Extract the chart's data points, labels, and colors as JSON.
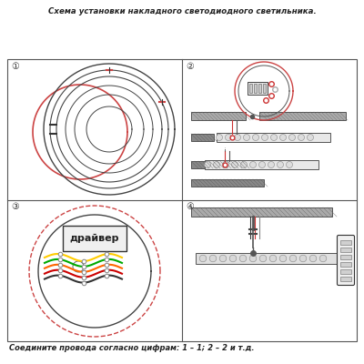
{
  "title": "Схема установки накладного светодиодного светильника.",
  "bottom_text": "Соедините провода согласно цифрам: 1 – 1; 2 – 2 и т.д.",
  "background_color": "#ffffff",
  "border_color": "#555555",
  "quadrant_labels": [
    "①",
    "②",
    "③",
    "④"
  ],
  "driver_text": "драйвер",
  "wire_colors": [
    "#ffcc00",
    "#00aa00",
    "#ff6600",
    "#cc0000",
    "#333333"
  ],
  "q1_lamp_color": "#555555",
  "q1_red_circle_color": "#cc4444"
}
